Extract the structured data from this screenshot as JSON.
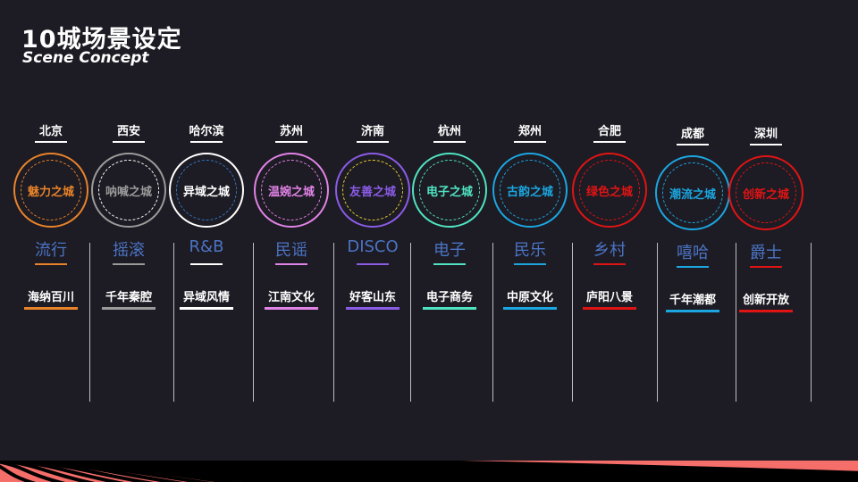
{
  "header": {
    "title": "10城场景设定",
    "subtitle": "Scene Concept"
  },
  "cities": [
    {
      "city": "北京",
      "circle": "魅力之城",
      "genre": "流行",
      "tag": "海纳百川",
      "color": "#e8832a",
      "inner": "#e8832a"
    },
    {
      "city": "西安",
      "circle": "呐喊之城",
      "genre": "摇滚",
      "tag": "千年秦腔",
      "color": "#9a9a9a",
      "inner": "#ffffff"
    },
    {
      "city": "哈尔滨",
      "circle": "异域之城",
      "genre": "R&B",
      "tag": "异域风情",
      "color": "#ffffff",
      "inner": "#2f78c8"
    },
    {
      "city": "苏州",
      "circle": "温婉之城",
      "genre": "民谣",
      "tag": "江南文化",
      "color": "#e083e6",
      "inner": "#e083e6"
    },
    {
      "city": "济南",
      "circle": "友善之城",
      "genre": "DISCO",
      "tag": "好客山东",
      "color": "#8a5ce6",
      "inner": "#e8d030"
    },
    {
      "city": "杭州",
      "circle": "电子之城",
      "genre": "电子",
      "tag": "电子商务",
      "color": "#4fe3c1",
      "inner": "#4fe3c1"
    },
    {
      "city": "郑州",
      "circle": "古韵之城",
      "genre": "民乐",
      "tag": "中原文化",
      "color": "#1ba6e0",
      "inner": "#1ba6e0"
    },
    {
      "city": "合肥",
      "circle": "绿色之城",
      "genre": "乡村",
      "tag": "庐阳八景",
      "color": "#e01414",
      "inner": "#e01414"
    },
    {
      "city": "成都",
      "circle": "潮流之城",
      "genre": "嘻哈",
      "tag": "千年潮都",
      "color": "#1ba6e0",
      "inner": "#1ba6e0"
    },
    {
      "city": "深圳",
      "circle": "创新之城",
      "genre": "爵士",
      "tag": "创新开放",
      "color": "#e01414",
      "inner": "#e01414"
    }
  ],
  "colors": {
    "background": "#1d1b23",
    "genre_text": "#4b74c4",
    "stripe": "#f56e6a"
  }
}
